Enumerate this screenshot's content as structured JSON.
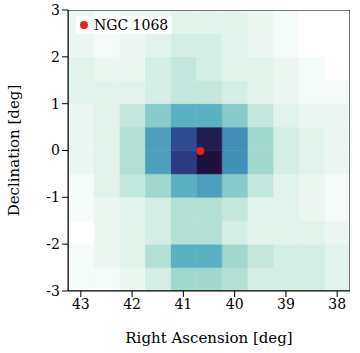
{
  "chart_data": {
    "type": "heatmap",
    "xlabel": "Right Ascension [deg]",
    "ylabel": "Declination [deg]",
    "xlim": [
      43.25,
      37.75
    ],
    "xticks": [
      43,
      42,
      41,
      40,
      39,
      38
    ],
    "ylim": [
      -3,
      3
    ],
    "yticks": [
      -3,
      -2,
      -1,
      0,
      1,
      2,
      3
    ],
    "legend": "upper left",
    "cells": {
      "x_edges": [
        37.75,
        38.25,
        38.75,
        39.25,
        39.75,
        40.25,
        40.75,
        41.25,
        41.75,
        42.25,
        42.75,
        43.25
      ],
      "y_edges": [
        -3,
        -2.5,
        -2,
        -1.5,
        -1,
        -0.5,
        0,
        0.5,
        1,
        1.5,
        2,
        2.5,
        3
      ],
      "values": [
        [
          0.15,
          0.2,
          0.2,
          0.2,
          0.3,
          0.35,
          0.35,
          0.2,
          0.1,
          0.05,
          0.05
        ],
        [
          0.15,
          0.2,
          0.2,
          0.25,
          0.35,
          0.5,
          0.5,
          0.3,
          0.15,
          0.1,
          0.05
        ],
        [
          0.1,
          0.15,
          0.15,
          0.15,
          0.2,
          0.3,
          0.3,
          0.2,
          0.15,
          0.1,
          0
        ],
        [
          0.05,
          0.1,
          0.15,
          0.15,
          0.25,
          0.3,
          0.3,
          0.2,
          0.15,
          0.1,
          0.05
        ],
        [
          0.05,
          0.1,
          0.15,
          0.25,
          0.4,
          0.55,
          0.5,
          0.35,
          0.25,
          0.15,
          0.05
        ],
        [
          0.1,
          0.15,
          0.2,
          0.35,
          0.6,
          1.0,
          0.85,
          0.55,
          0.3,
          0.15,
          0.1
        ],
        [
          0.1,
          0.15,
          0.2,
          0.35,
          0.6,
          0.95,
          0.8,
          0.55,
          0.3,
          0.15,
          0.1
        ],
        [
          0.1,
          0.1,
          0.15,
          0.25,
          0.4,
          0.5,
          0.5,
          0.4,
          0.25,
          0.15,
          0.1
        ],
        [
          0.05,
          0.05,
          0.1,
          0.15,
          0.2,
          0.25,
          0.25,
          0.2,
          0.15,
          0.15,
          0.15
        ],
        [
          0,
          0.05,
          0.1,
          0.15,
          0.15,
          0.2,
          0.25,
          0.2,
          0.1,
          0.1,
          0.15
        ],
        [
          0,
          0,
          0.05,
          0.1,
          0.15,
          0.2,
          0.2,
          0.15,
          0.1,
          0.05,
          0.1
        ],
        [
          0,
          0,
          0.05,
          0.1,
          0.15,
          0.15,
          0.15,
          0.1,
          0.1,
          0.05,
          0.1
        ]
      ],
      "zlim": [
        0,
        1
      ],
      "colors": [
        "#ffffff",
        "#dff2ea",
        "#a8dccf",
        "#5bb0c2",
        "#2e7bb0",
        "#2d3f86",
        "#1f0f3f"
      ]
    },
    "points": [
      {
        "name": "NGC 1068",
        "x": 40.67,
        "y": -0.01,
        "color": "#e8211c",
        "marker": "circle"
      }
    ]
  }
}
